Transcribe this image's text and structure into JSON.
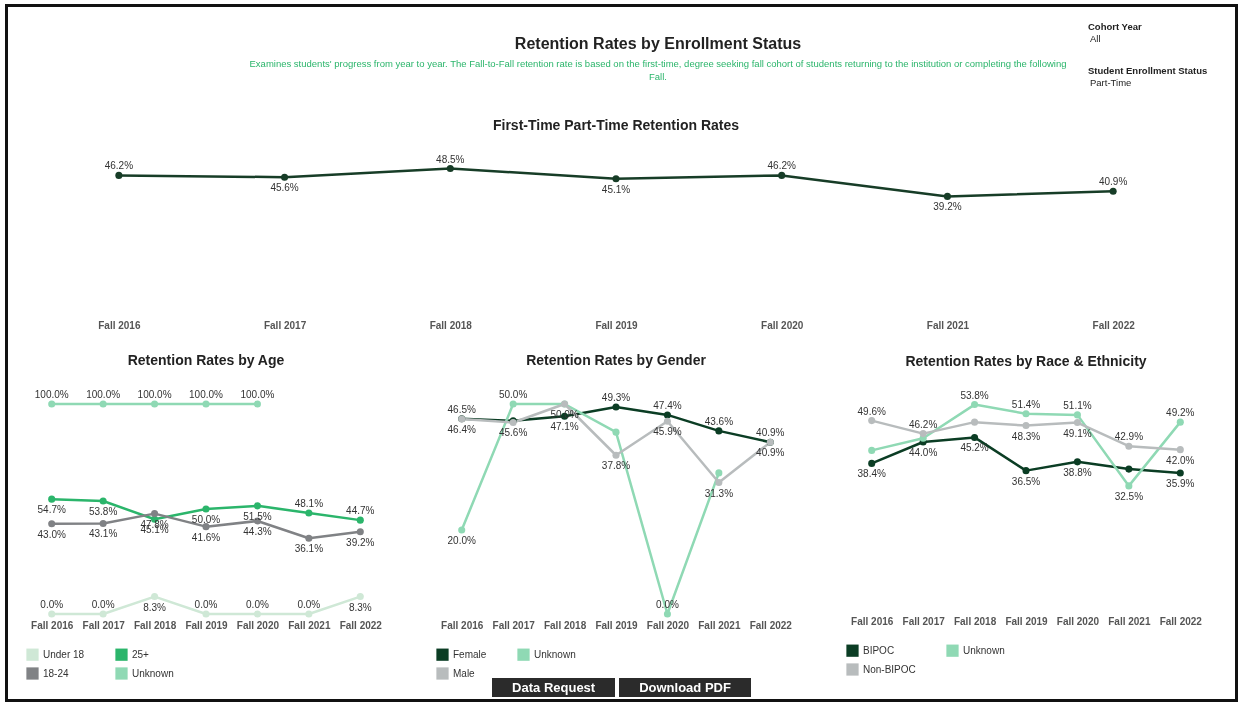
{
  "chart_data": [
    {
      "type": "other",
      "title": "Retention Rates by Enrollment Status",
      "subtitle": "Examines students' progress from year to year. The Fall-to-Fall retention rate is based on the first-time, degree seeking fall cohort of students returning to the institution or completing the following Fall.",
      "annotations": [
        "Cohort Year",
        "All",
        "Student Enrollment Status",
        "Part-Time"
      ]
    },
    {
      "type": "line",
      "title": "First-Time Part-Time Retention Rates",
      "categories": [
        "Fall 2016",
        "Fall 2017",
        "Fall 2018",
        "Fall 2019",
        "Fall 2020",
        "Fall 2021",
        "Fall 2022"
      ],
      "marker": "circle",
      "tick_labels": "x",
      "series": [
        {
          "color": "#173d27",
          "values": [
            46.2,
            45.6,
            48.5,
            45.1,
            46.2,
            39.2,
            40.9
          ],
          "value_labels": [
            "46.2%",
            "45.6%",
            "48.5%",
            "45.1%",
            "46.2%",
            "39.2%",
            "40.9%"
          ]
        }
      ]
    },
    {
      "type": "line",
      "title": "Retention Rates by Age",
      "categories": [
        "Fall 2016",
        "Fall 2017",
        "Fall 2018",
        "Fall 2019",
        "Fall 2020",
        "Fall 2021",
        "Fall 2022"
      ],
      "marker": "circle",
      "tick_labels": "x",
      "legend": "bottom left",
      "series": [
        {
          "name": "Under 18",
          "color": "#cfe8d6",
          "values": [
            0,
            0,
            8.3,
            0,
            0,
            0,
            8.3
          ],
          "value_labels": [
            "0.0%",
            "0.0%",
            "8.3%",
            "0.0%",
            "0.0%",
            "0.0%",
            "8.3%"
          ]
        },
        {
          "name": "25+",
          "color": "#2bb56b",
          "values": [
            54.7,
            53.8,
            45.1,
            50.0,
            51.5,
            48.1,
            44.7
          ],
          "value_labels": [
            "54.7%",
            "53.8%",
            "45.1%",
            "50.0%",
            "51.5%",
            "48.1%",
            "44.7%"
          ]
        },
        {
          "name": "18-24",
          "color": "#808285",
          "values": [
            43.0,
            43.1,
            47.8,
            41.6,
            44.3,
            36.1,
            39.2
          ],
          "value_labels": [
            "43.0%",
            "43.1%",
            "47.8%",
            "41.6%",
            "44.3%",
            "36.1%",
            "39.2%"
          ]
        },
        {
          "name": "Unknown",
          "color": "#8fd9b4",
          "values": [
            100,
            100,
            100,
            100,
            100,
            null,
            null
          ],
          "value_labels": [
            "100.0%",
            "100.0%",
            "100.0%",
            "100.0%",
            "100.0%",
            null,
            null
          ]
        }
      ]
    },
    {
      "type": "line",
      "title": "Retention Rates by Gender",
      "categories": [
        "Fall 2016",
        "Fall 2017",
        "Fall 2018",
        "Fall 2019",
        "Fall 2020",
        "Fall 2021",
        "Fall 2022"
      ],
      "marker": "circle",
      "tick_labels": "x",
      "legend": "bottom left",
      "series": [
        {
          "name": "Female",
          "color": "#0b3d24",
          "values": [
            46.5,
            46.0,
            47.1,
            49.3,
            47.4,
            43.6,
            40.9
          ],
          "value_labels": [
            "46.5%",
            null,
            "47.1%",
            "49.3%",
            "47.4%",
            "43.6%",
            "40.9%"
          ]
        },
        {
          "name": "Unknown",
          "color": "#8fd9b4",
          "values": [
            20.0,
            50.0,
            50.0,
            43.3,
            0,
            33.6,
            null
          ],
          "value_labels": [
            "20.0%",
            "50.0%",
            null,
            null,
            "0.0%",
            null,
            null
          ]
        },
        {
          "name": "Male",
          "color": "#b8bcbd",
          "values": [
            46.4,
            45.6,
            50.0,
            37.8,
            45.9,
            31.3,
            40.9
          ],
          "value_labels": [
            "46.4%",
            "45.6%",
            "50.0%",
            "37.8%",
            "45.9%",
            "31.3%",
            "40.9%"
          ]
        }
      ]
    },
    {
      "type": "line",
      "title": "Retention Rates by Race & Ethnicity",
      "categories": [
        "Fall 2016",
        "Fall 2017",
        "Fall 2018",
        "Fall 2019",
        "Fall 2020",
        "Fall 2021",
        "Fall 2022"
      ],
      "marker": "circle",
      "tick_labels": "x",
      "legend": "bottom left",
      "series": [
        {
          "name": "BIPOC",
          "color": "#0b3d24",
          "values": [
            38.4,
            44.0,
            45.2,
            36.5,
            38.8,
            36.9,
            35.9
          ],
          "value_labels": [
            "38.4%",
            "44.0%",
            "45.2%",
            "36.5%",
            "38.8%",
            null,
            "35.9%"
          ]
        },
        {
          "name": "Unknown",
          "color": "#8fd9b4",
          "values": [
            41.8,
            45.0,
            53.8,
            51.4,
            51.1,
            32.5,
            49.2
          ],
          "value_labels": [
            null,
            null,
            "53.8%",
            "51.4%",
            "51.1%",
            "32.5%",
            "49.2%"
          ]
        },
        {
          "name": "Non-BIPOC",
          "color": "#b8bcbd",
          "values": [
            49.6,
            46.2,
            49.2,
            48.3,
            49.1,
            42.9,
            42.0
          ],
          "value_labels": [
            "49.6%",
            "46.2%",
            null,
            "48.3%",
            "49.1%",
            "42.9%",
            "42.0%"
          ]
        }
      ]
    },
    {
      "type": "other",
      "annotations": [
        "Data Request",
        "Download PDF"
      ]
    }
  ]
}
